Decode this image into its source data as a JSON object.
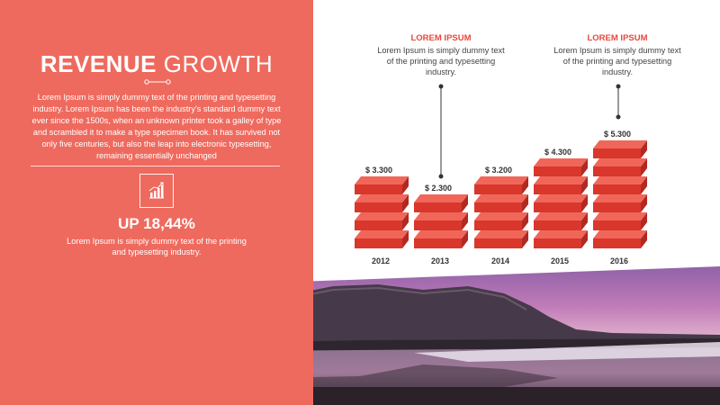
{
  "left_panel": {
    "title_bold": "REVENUE",
    "title_light": "GROWTH",
    "intro_text": "Lorem Ipsum is simply dummy text of the printing and typesetting industry. Lorem Ipsum has been the industry's standard dummy text ever since the 1500s, when an unknown printer took a galley of type and scrambled it to make a type specimen book. It has survived not only five centuries, but also the leap into electronic typesetting, remaining essentially unchanged",
    "stat_value": "UP 18,44%",
    "stat_text": "Lorem Ipsum is simply dummy text of the printing and typesetting industry.",
    "icon": "growth-chart-icon"
  },
  "callouts": [
    {
      "title": "LOREM IPSUM",
      "text": "Lorem Ipsum is simply dummy text of the printing and typesetting industry."
    },
    {
      "title": "LOREM IPSUM",
      "text": "Lorem Ipsum is simply dummy text of the printing and typesetting industry."
    }
  ],
  "colors": {
    "panel": "#ef6a5e",
    "accent": "#e8473c",
    "brick_top": "#f0675a",
    "brick_front": "#d9362c",
    "brick_side": "#b02a22"
  },
  "chart_data": {
    "type": "bar",
    "categories": [
      "2012",
      "2013",
      "2014",
      "2015",
      "2016"
    ],
    "values": [
      3300,
      2300,
      3200,
      4300,
      5300
    ],
    "value_labels": [
      "$ 3.300",
      "$ 2.300",
      "$ 3.200",
      "$ 4.300",
      "$ 5.300"
    ],
    "title": "",
    "xlabel": "",
    "ylabel": "",
    "ylim": [
      0,
      5300
    ],
    "stacked_blocks": [
      4,
      3,
      4,
      5,
      6
    ]
  }
}
